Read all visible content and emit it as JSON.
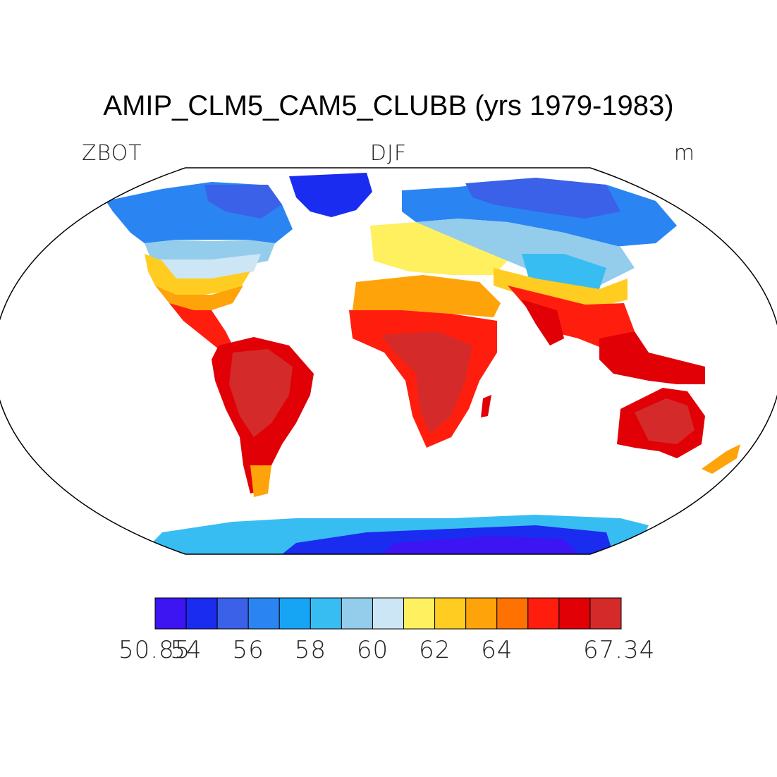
{
  "title": "AMIP_CLM5_CAM5_CLUBB (yrs 1979-1983)",
  "variable": "ZBOT",
  "season": "DJF",
  "units": "m",
  "colorbar": {
    "colors": [
      "#3d14f2",
      "#1a2cf0",
      "#3b61e8",
      "#2a85f2",
      "#16a4f5",
      "#38bdf2",
      "#94ccec",
      "#cde6f5",
      "#fff060",
      "#ffcc22",
      "#ffa30a",
      "#ff7100",
      "#ff1e0e",
      "#e00006",
      "#d42b2a"
    ],
    "min": "50.85",
    "max": "67.34",
    "tick_labels": [
      "50.85",
      "54",
      "56",
      "58",
      "60",
      "62",
      "64",
      "67.34"
    ],
    "tick_index": [
      0,
      1,
      3,
      5,
      7,
      9,
      11,
      15
    ]
  }
}
